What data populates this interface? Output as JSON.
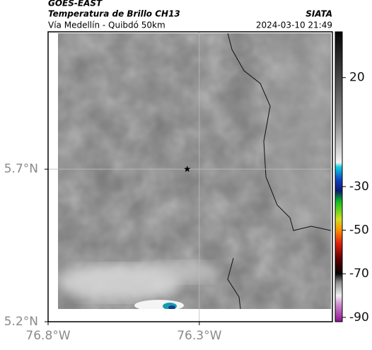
{
  "header": {
    "source": "GOES-EAST",
    "title": "Temperatura de Brillo CH13",
    "subtitle": "Vía Medellín - Quibdó 50km",
    "org": "SIATA",
    "timestamp": "2024-03-10 21:49"
  },
  "chart_data": {
    "type": "map",
    "xlim": [
      -76.8,
      -75.86
    ],
    "ylim": [
      5.2,
      6.15
    ],
    "xticks": [
      {
        "value": -76.8,
        "label": "76.8°W"
      },
      {
        "value": -76.3,
        "label": "76.3°W"
      }
    ],
    "yticks": [
      {
        "value": 5.2,
        "label": "5.2°N"
      },
      {
        "value": 5.7,
        "label": "5.7°N"
      }
    ],
    "grid": true,
    "marker": {
      "x": -76.34,
      "y": 5.7
    },
    "colorbar": {
      "lim": [
        -92,
        41
      ],
      "ticks": [
        20,
        -30,
        -50,
        -70,
        -90
      ],
      "stops": [
        {
          "value": 41,
          "color": "#050505"
        },
        {
          "value": 20,
          "color": "#454545"
        },
        {
          "value": 0,
          "color": "#8a8a8a"
        },
        {
          "value": -19,
          "color": "#f2f2f2"
        },
        {
          "value": -21,
          "color": "#10d0e0"
        },
        {
          "value": -27,
          "color": "#1040c0"
        },
        {
          "value": -32,
          "color": "#0a1a70"
        },
        {
          "value": -37,
          "color": "#10c020"
        },
        {
          "value": -45,
          "color": "#d0e020"
        },
        {
          "value": -50,
          "color": "#ff9000"
        },
        {
          "value": -56,
          "color": "#e02010"
        },
        {
          "value": -63,
          "color": "#600000"
        },
        {
          "value": -70,
          "color": "#050505"
        },
        {
          "value": -74,
          "color": "#909090"
        },
        {
          "value": -80,
          "color": "#f0f0f0"
        },
        {
          "value": -84,
          "color": "#d090d0"
        },
        {
          "value": -92,
          "color": "#901090"
        }
      ]
    }
  }
}
